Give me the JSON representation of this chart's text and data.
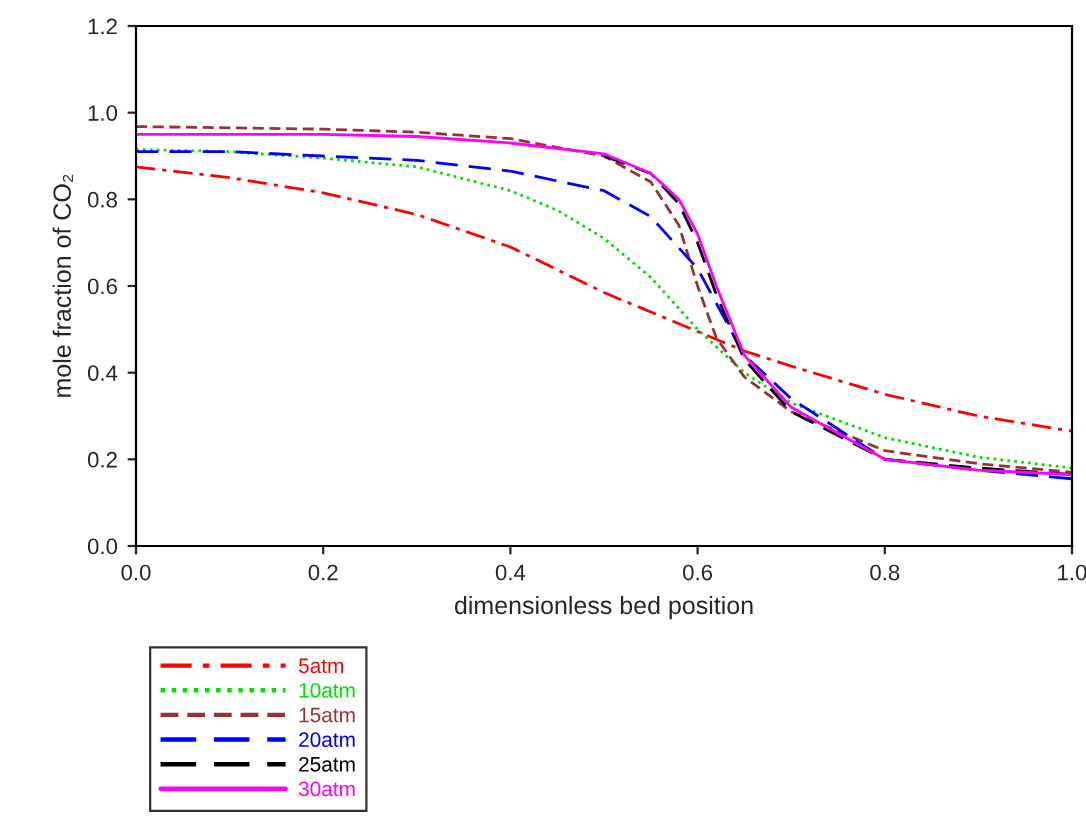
{
  "chart_data": {
    "type": "line",
    "xlabel": "dimensionless bed position",
    "ylabel": "mole fraction of CO₂",
    "xlim": [
      0,
      1.0
    ],
    "ylim": [
      0,
      1.2
    ],
    "xticks": [
      {
        "value": 0,
        "label": "0.0"
      },
      {
        "value": 0.2,
        "label": "0.2"
      },
      {
        "value": 0.4,
        "label": "0.4"
      },
      {
        "value": 0.6,
        "label": "0.6"
      },
      {
        "value": 0.8,
        "label": "0.8"
      },
      {
        "value": 1.0,
        "label": "1.0"
      }
    ],
    "yticks": [
      {
        "value": 0,
        "label": "0.0"
      },
      {
        "value": 0.2,
        "label": "0.2"
      },
      {
        "value": 0.4,
        "label": "0.4"
      },
      {
        "value": 0.6,
        "label": "0.6"
      },
      {
        "value": 0.8,
        "label": "0.8"
      },
      {
        "value": 1.0,
        "label": "1.0"
      },
      {
        "value": 1.2,
        "label": "1.2"
      }
    ],
    "grid": false,
    "legend": "bottom left",
    "marker": "none",
    "series": [
      {
        "name": "5atm",
        "color": "#ff0000",
        "line_style": "dashdot",
        "x": [
          0,
          0.1,
          0.2,
          0.3,
          0.4,
          0.5,
          0.55,
          0.6,
          0.65,
          0.7,
          0.8,
          0.9,
          1.0
        ],
        "values": [
          0.875,
          0.85,
          0.815,
          0.765,
          0.69,
          0.585,
          0.54,
          0.495,
          0.45,
          0.415,
          0.35,
          0.3,
          0.265
        ]
      },
      {
        "name": "10atm",
        "color": "#00e000",
        "line_style": "dotted",
        "x": [
          0,
          0.1,
          0.2,
          0.3,
          0.4,
          0.45,
          0.5,
          0.55,
          0.6,
          0.65,
          0.7,
          0.8,
          0.9,
          1.0
        ],
        "values": [
          0.915,
          0.91,
          0.895,
          0.875,
          0.82,
          0.775,
          0.71,
          0.62,
          0.5,
          0.4,
          0.33,
          0.25,
          0.205,
          0.18
        ]
      },
      {
        "name": "15atm",
        "color": "#993333",
        "line_style": "dashed",
        "x": [
          0,
          0.2,
          0.3,
          0.4,
          0.5,
          0.55,
          0.58,
          0.6,
          0.62,
          0.65,
          0.7,
          0.8,
          0.9,
          1.0
        ],
        "values": [
          0.968,
          0.962,
          0.955,
          0.94,
          0.9,
          0.84,
          0.74,
          0.6,
          0.48,
          0.39,
          0.31,
          0.22,
          0.19,
          0.17
        ]
      },
      {
        "name": "20atm",
        "color": "#0000ff",
        "line_style": "longdash",
        "x": [
          0,
          0.1,
          0.2,
          0.3,
          0.4,
          0.5,
          0.55,
          0.6,
          0.63,
          0.65,
          0.7,
          0.8,
          0.9,
          1.0
        ],
        "values": [
          0.91,
          0.91,
          0.9,
          0.89,
          0.865,
          0.82,
          0.76,
          0.64,
          0.52,
          0.44,
          0.34,
          0.2,
          0.175,
          0.155
        ]
      },
      {
        "name": "25atm",
        "color": "#000000",
        "line_style": "longdash",
        "x": [
          0.5,
          0.55,
          0.58,
          0.6,
          0.62,
          0.65,
          0.7,
          0.8,
          0.9,
          1.0
        ],
        "values": [
          0.9,
          0.86,
          0.79,
          0.7,
          0.58,
          0.43,
          0.31,
          0.2,
          0.18,
          0.165
        ]
      },
      {
        "name": "30atm",
        "color": "#ff00ff",
        "line_style": "solid",
        "x": [
          0,
          0.2,
          0.3,
          0.4,
          0.5,
          0.55,
          0.58,
          0.6,
          0.62,
          0.65,
          0.7,
          0.8,
          0.9,
          1.0
        ],
        "values": [
          0.95,
          0.95,
          0.945,
          0.93,
          0.905,
          0.86,
          0.8,
          0.72,
          0.6,
          0.44,
          0.32,
          0.2,
          0.175,
          0.165
        ]
      }
    ]
  }
}
